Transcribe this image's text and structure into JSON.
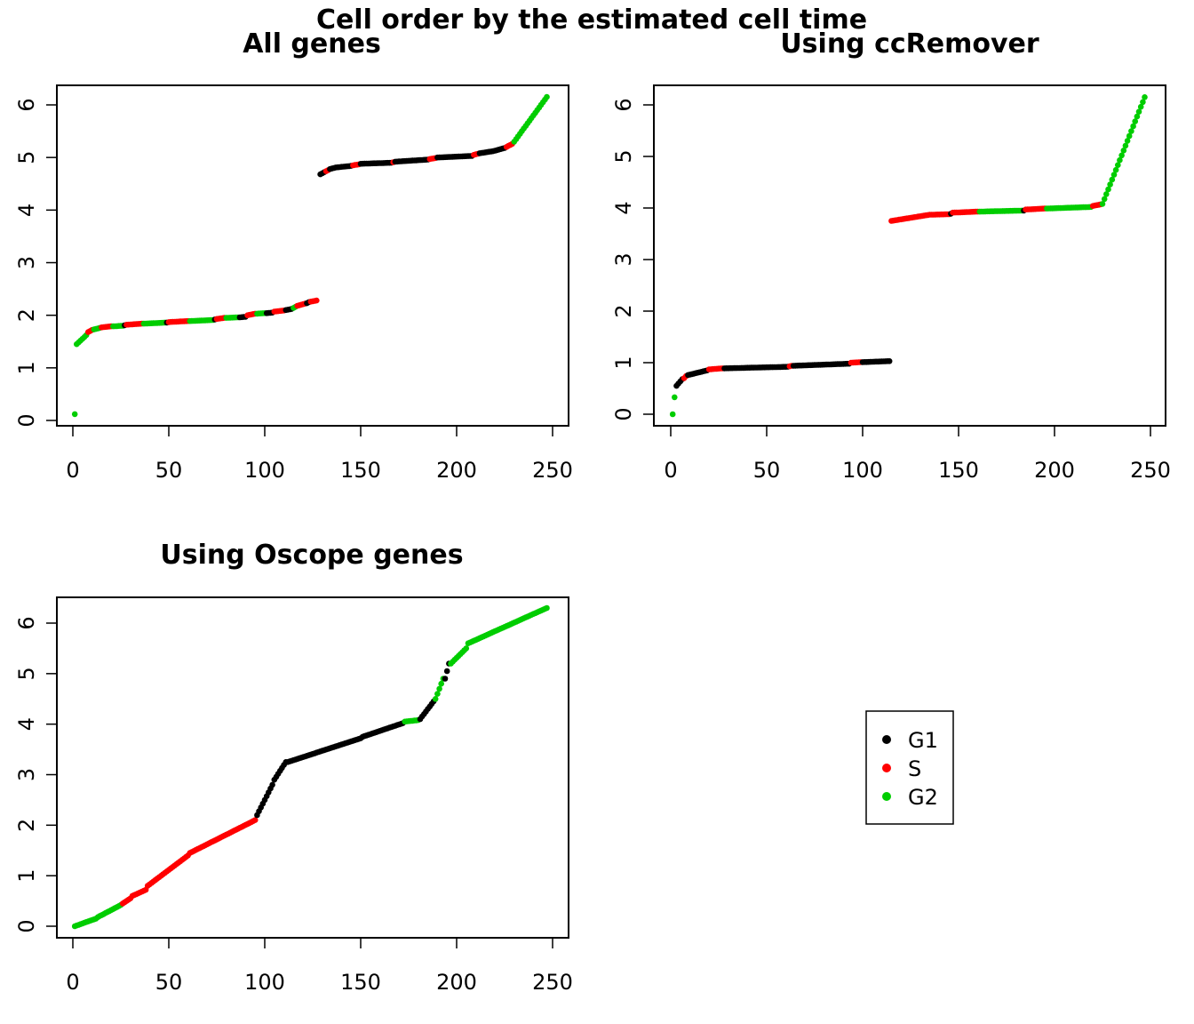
{
  "figure": {
    "title": "Cell order by the estimated cell time"
  },
  "chart_data": [
    {
      "type": "scatter",
      "title": "All genes",
      "xlabel": "",
      "ylabel": "",
      "xlim": [
        0,
        250
      ],
      "ylim": [
        0,
        6
      ],
      "x_ticks": [
        "0",
        "50",
        "100",
        "150",
        "200",
        "250"
      ],
      "y_ticks": [
        "0",
        "1",
        "2",
        "3",
        "4",
        "5",
        "6"
      ],
      "n_points": 247,
      "segments": [
        {
          "x": [
            1,
            1
          ],
          "y": [
            0.12,
            0.12
          ],
          "phase": "G2"
        },
        {
          "x": [
            2,
            7
          ],
          "y": [
            1.45,
            1.62
          ],
          "phase": "G2"
        },
        {
          "x": [
            8,
            10
          ],
          "y": [
            1.68,
            1.72
          ],
          "phase": "S"
        },
        {
          "x": [
            11,
            14
          ],
          "y": [
            1.73,
            1.76
          ],
          "phase": "G2"
        },
        {
          "x": [
            15,
            20
          ],
          "y": [
            1.77,
            1.79
          ],
          "phase": "S"
        },
        {
          "x": [
            21,
            26
          ],
          "y": [
            1.79,
            1.8
          ],
          "phase": "G2"
        },
        {
          "x": [
            27,
            27
          ],
          "y": [
            1.81,
            1.81
          ],
          "phase": "G1"
        },
        {
          "x": [
            28,
            36
          ],
          "y": [
            1.82,
            1.84
          ],
          "phase": "S"
        },
        {
          "x": [
            37,
            48
          ],
          "y": [
            1.84,
            1.86
          ],
          "phase": "G2"
        },
        {
          "x": [
            49,
            49
          ],
          "y": [
            1.86,
            1.86
          ],
          "phase": "G1"
        },
        {
          "x": [
            50,
            60
          ],
          "y": [
            1.87,
            1.89
          ],
          "phase": "S"
        },
        {
          "x": [
            61,
            73
          ],
          "y": [
            1.89,
            1.91
          ],
          "phase": "G2"
        },
        {
          "x": [
            74,
            74
          ],
          "y": [
            1.92,
            1.92
          ],
          "phase": "G1"
        },
        {
          "x": [
            75,
            79
          ],
          "y": [
            1.93,
            1.95
          ],
          "phase": "S"
        },
        {
          "x": [
            80,
            86
          ],
          "y": [
            1.95,
            1.96
          ],
          "phase": "G2"
        },
        {
          "x": [
            87,
            90
          ],
          "y": [
            1.96,
            1.97
          ],
          "phase": "G1"
        },
        {
          "x": [
            91,
            95
          ],
          "y": [
            2.0,
            2.03
          ],
          "phase": "S"
        },
        {
          "x": [
            96,
            100
          ],
          "y": [
            2.03,
            2.04
          ],
          "phase": "G2"
        },
        {
          "x": [
            101,
            104
          ],
          "y": [
            2.04,
            2.05
          ],
          "phase": "G1"
        },
        {
          "x": [
            105,
            110
          ],
          "y": [
            2.07,
            2.09
          ],
          "phase": "S"
        },
        {
          "x": [
            111,
            114
          ],
          "y": [
            2.1,
            2.12
          ],
          "phase": "G1"
        },
        {
          "x": [
            115,
            116
          ],
          "y": [
            2.14,
            2.16
          ],
          "phase": "G2"
        },
        {
          "x": [
            117,
            121
          ],
          "y": [
            2.18,
            2.22
          ],
          "phase": "S"
        },
        {
          "x": [
            122,
            123
          ],
          "y": [
            2.23,
            2.25
          ],
          "phase": "G1"
        },
        {
          "x": [
            124,
            127
          ],
          "y": [
            2.26,
            2.28
          ],
          "phase": "S"
        },
        {
          "x": [
            129,
            131
          ],
          "y": [
            4.68,
            4.72
          ],
          "phase": "G1"
        },
        {
          "x": [
            132,
            133
          ],
          "y": [
            4.74,
            4.76
          ],
          "phase": "S"
        },
        {
          "x": [
            134,
            136
          ],
          "y": [
            4.78,
            4.8
          ],
          "phase": "G1"
        },
        {
          "x": [
            137,
            145
          ],
          "y": [
            4.81,
            4.84
          ],
          "phase": "G1"
        },
        {
          "x": [
            146,
            149
          ],
          "y": [
            4.85,
            4.87
          ],
          "phase": "S"
        },
        {
          "x": [
            150,
            166
          ],
          "y": [
            4.88,
            4.9
          ],
          "phase": "G1"
        },
        {
          "x": [
            167,
            167
          ],
          "y": [
            4.91,
            4.91
          ],
          "phase": "S"
        },
        {
          "x": [
            168,
            185
          ],
          "y": [
            4.92,
            4.96
          ],
          "phase": "G1"
        },
        {
          "x": [
            186,
            189
          ],
          "y": [
            4.97,
            4.99
          ],
          "phase": "S"
        },
        {
          "x": [
            190,
            208
          ],
          "y": [
            5.0,
            5.03
          ],
          "phase": "G1"
        },
        {
          "x": [
            209,
            211
          ],
          "y": [
            5.05,
            5.07
          ],
          "phase": "S"
        },
        {
          "x": [
            212,
            219
          ],
          "y": [
            5.08,
            5.12
          ],
          "phase": "G1"
        },
        {
          "x": [
            220,
            225
          ],
          "y": [
            5.13,
            5.18
          ],
          "phase": "G1"
        },
        {
          "x": [
            226,
            229
          ],
          "y": [
            5.2,
            5.26
          ],
          "phase": "S"
        },
        {
          "x": [
            230,
            247
          ],
          "y": [
            5.3,
            6.15
          ],
          "phase": "G2"
        }
      ]
    },
    {
      "type": "scatter",
      "title": "Using ccRemover",
      "xlabel": "",
      "ylabel": "",
      "xlim": [
        0,
        250
      ],
      "ylim": [
        0,
        6
      ],
      "x_ticks": [
        "0",
        "50",
        "100",
        "150",
        "200",
        "250"
      ],
      "y_ticks": [
        "0",
        "1",
        "2",
        "3",
        "4",
        "5",
        "6"
      ],
      "n_points": 247,
      "segments": [
        {
          "x": [
            1,
            2
          ],
          "y": [
            0.0,
            0.33
          ],
          "phase": "G2"
        },
        {
          "x": [
            3,
            6
          ],
          "y": [
            0.55,
            0.68
          ],
          "phase": "G1"
        },
        {
          "x": [
            7,
            8
          ],
          "y": [
            0.7,
            0.74
          ],
          "phase": "S"
        },
        {
          "x": [
            9,
            19
          ],
          "y": [
            0.76,
            0.85
          ],
          "phase": "G1"
        },
        {
          "x": [
            20,
            27
          ],
          "y": [
            0.87,
            0.89
          ],
          "phase": "S"
        },
        {
          "x": [
            28,
            61
          ],
          "y": [
            0.89,
            0.92
          ],
          "phase": "G1"
        },
        {
          "x": [
            62,
            63
          ],
          "y": [
            0.93,
            0.94
          ],
          "phase": "S"
        },
        {
          "x": [
            64,
            93
          ],
          "y": [
            0.94,
            0.98
          ],
          "phase": "G1"
        },
        {
          "x": [
            94,
            99
          ],
          "y": [
            1.0,
            1.01
          ],
          "phase": "S"
        },
        {
          "x": [
            100,
            114
          ],
          "y": [
            1.01,
            1.03
          ],
          "phase": "G1"
        },
        {
          "x": [
            115,
            135
          ],
          "y": [
            3.75,
            3.87
          ],
          "phase": "S"
        },
        {
          "x": [
            136,
            145
          ],
          "y": [
            3.87,
            3.88
          ],
          "phase": "S"
        },
        {
          "x": [
            146,
            146
          ],
          "y": [
            3.89,
            3.89
          ],
          "phase": "G1"
        },
        {
          "x": [
            147,
            160
          ],
          "y": [
            3.91,
            3.93
          ],
          "phase": "S"
        },
        {
          "x": [
            161,
            183
          ],
          "y": [
            3.93,
            3.95
          ],
          "phase": "G2"
        },
        {
          "x": [
            184,
            184
          ],
          "y": [
            3.95,
            3.95
          ],
          "phase": "G1"
        },
        {
          "x": [
            185,
            195
          ],
          "y": [
            3.97,
            3.99
          ],
          "phase": "S"
        },
        {
          "x": [
            196,
            219
          ],
          "y": [
            3.99,
            4.02
          ],
          "phase": "G2"
        },
        {
          "x": [
            220,
            224
          ],
          "y": [
            4.04,
            4.07
          ],
          "phase": "S"
        },
        {
          "x": [
            225,
            247
          ],
          "y": [
            4.08,
            6.15
          ],
          "phase": "G2"
        }
      ]
    },
    {
      "type": "scatter",
      "title": "Using Oscope genes",
      "xlabel": "",
      "ylabel": "",
      "xlim": [
        0,
        250
      ],
      "ylim": [
        0,
        6
      ],
      "x_ticks": [
        "0",
        "50",
        "100",
        "150",
        "200",
        "250"
      ],
      "y_ticks": [
        "0",
        "1",
        "2",
        "3",
        "4",
        "5",
        "6"
      ],
      "n_points": 247,
      "segments": [
        {
          "x": [
            1,
            12
          ],
          "y": [
            0.0,
            0.15
          ],
          "phase": "G2"
        },
        {
          "x": [
            13,
            25
          ],
          "y": [
            0.18,
            0.42
          ],
          "phase": "G2"
        },
        {
          "x": [
            26,
            30
          ],
          "y": [
            0.45,
            0.55
          ],
          "phase": "S"
        },
        {
          "x": [
            31,
            38
          ],
          "y": [
            0.6,
            0.72
          ],
          "phase": "S"
        },
        {
          "x": [
            39,
            60
          ],
          "y": [
            0.8,
            1.4
          ],
          "phase": "S"
        },
        {
          "x": [
            61,
            95
          ],
          "y": [
            1.45,
            2.1
          ],
          "phase": "S"
        },
        {
          "x": [
            96,
            104
          ],
          "y": [
            2.2,
            2.8
          ],
          "phase": "G1"
        },
        {
          "x": [
            105,
            111
          ],
          "y": [
            2.9,
            3.25
          ],
          "phase": "G1"
        },
        {
          "x": [
            112,
            150
          ],
          "y": [
            3.25,
            3.72
          ],
          "phase": "G1"
        },
        {
          "x": [
            151,
            172
          ],
          "y": [
            3.75,
            4.02
          ],
          "phase": "G1"
        },
        {
          "x": [
            173,
            180
          ],
          "y": [
            4.05,
            4.08
          ],
          "phase": "G2"
        },
        {
          "x": [
            181,
            188
          ],
          "y": [
            4.1,
            4.45
          ],
          "phase": "G1"
        },
        {
          "x": [
            189,
            193
          ],
          "y": [
            4.5,
            4.9
          ],
          "phase": "G2"
        },
        {
          "x": [
            194,
            196
          ],
          "y": [
            4.9,
            5.2
          ],
          "phase": "G1"
        },
        {
          "x": [
            197,
            205
          ],
          "y": [
            5.2,
            5.5
          ],
          "phase": "G2"
        },
        {
          "x": [
            206,
            247
          ],
          "y": [
            5.6,
            6.3
          ],
          "phase": "G2"
        }
      ]
    }
  ],
  "legend": {
    "entries": [
      {
        "label": "G1",
        "color": "#000000"
      },
      {
        "label": "S",
        "color": "#ff0000"
      },
      {
        "label": "G2",
        "color": "#00cd00"
      }
    ]
  },
  "colors": {
    "G1": "#000000",
    "S": "#ff0000",
    "G2": "#00cd00"
  }
}
